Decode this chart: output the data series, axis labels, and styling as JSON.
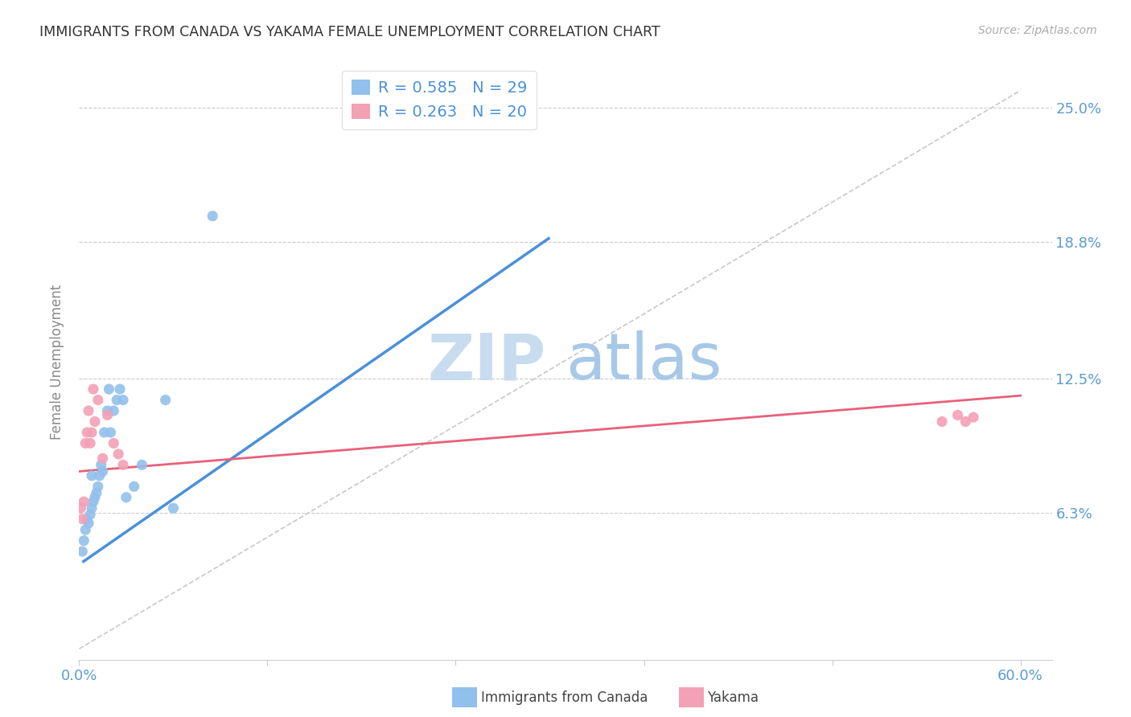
{
  "title": "IMMIGRANTS FROM CANADA VS YAKAMA FEMALE UNEMPLOYMENT CORRELATION CHART",
  "source": "Source: ZipAtlas.com",
  "ylabel": "Female Unemployment",
  "xlim": [
    0.0,
    0.62
  ],
  "ylim": [
    -0.005,
    0.27
  ],
  "r1": "0.585",
  "n1": "29",
  "r2": "0.263",
  "n2": "20",
  "blue_color": "#92C0EC",
  "pink_color": "#F4A0B5",
  "blue_line_color": "#4A90D9",
  "pink_line_color": "#E8607A",
  "ref_line_color": "#C8C8C8",
  "tick_color": "#5B9BD5",
  "background_color": "#FFFFFF",
  "watermark_zip": "ZIP",
  "watermark_atlas": "atlas",
  "blue_dots_x": [
    0.002,
    0.003,
    0.004,
    0.005,
    0.006,
    0.007,
    0.008,
    0.008,
    0.009,
    0.01,
    0.011,
    0.012,
    0.013,
    0.014,
    0.015,
    0.016,
    0.018,
    0.019,
    0.02,
    0.022,
    0.024,
    0.026,
    0.028,
    0.03,
    0.035,
    0.04,
    0.055,
    0.06,
    0.085
  ],
  "blue_dots_y": [
    0.045,
    0.05,
    0.055,
    0.06,
    0.058,
    0.062,
    0.065,
    0.08,
    0.068,
    0.07,
    0.072,
    0.075,
    0.08,
    0.085,
    0.082,
    0.1,
    0.11,
    0.12,
    0.1,
    0.11,
    0.115,
    0.12,
    0.115,
    0.07,
    0.075,
    0.085,
    0.115,
    0.065,
    0.2
  ],
  "pink_dots_x": [
    0.001,
    0.002,
    0.003,
    0.004,
    0.005,
    0.006,
    0.007,
    0.008,
    0.009,
    0.01,
    0.012,
    0.015,
    0.018,
    0.022,
    0.025,
    0.028,
    0.55,
    0.56,
    0.565,
    0.57
  ],
  "pink_dots_y": [
    0.065,
    0.06,
    0.068,
    0.095,
    0.1,
    0.11,
    0.095,
    0.1,
    0.12,
    0.105,
    0.115,
    0.088,
    0.108,
    0.095,
    0.09,
    0.085,
    0.105,
    0.108,
    0.105,
    0.107
  ],
  "blue_line_x": [
    0.002,
    0.3
  ],
  "blue_line_y": [
    0.04,
    0.19
  ],
  "pink_line_x": [
    0.0,
    0.6
  ],
  "pink_line_y": [
    0.082,
    0.117
  ],
  "ref_line_x": [
    0.0,
    0.6
  ],
  "ref_line_y": [
    0.0,
    0.258
  ],
  "x_tick_positions": [
    0.0,
    0.12,
    0.24,
    0.36,
    0.48,
    0.6
  ],
  "y_tick_positions": [
    0.0,
    0.063,
    0.125,
    0.188,
    0.25
  ],
  "y_tick_labels": [
    "",
    "6.3%",
    "12.5%",
    "18.8%",
    "25.0%"
  ]
}
